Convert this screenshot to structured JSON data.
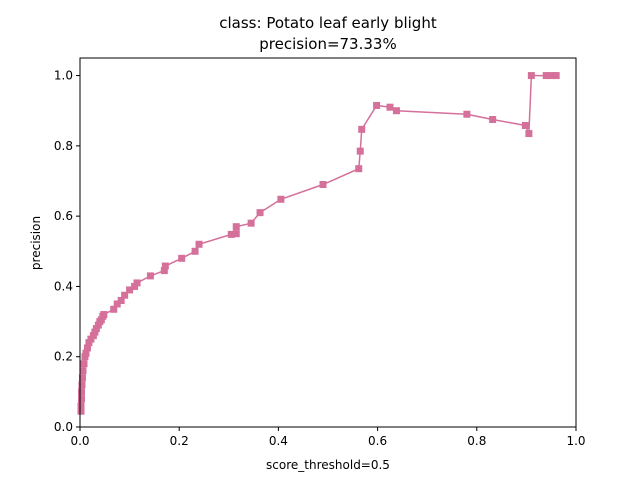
{
  "chart_data": {
    "type": "line",
    "title": "class: Potato leaf early blight",
    "subtitle": "precision=73.33%",
    "xlabel": "score_threshold=0.5",
    "ylabel": "precision",
    "xlim": [
      0.0,
      1.0
    ],
    "ylim": [
      0.0,
      1.05
    ],
    "xticks": [
      "0.0",
      "0.2",
      "0.4",
      "0.6",
      "0.8",
      "1.0"
    ],
    "yticks": [
      "0.0",
      "0.2",
      "0.4",
      "0.6",
      "0.8",
      "1.0"
    ],
    "grid": false,
    "legend": "none",
    "marker": "square",
    "color": "#d4709a",
    "series": [
      {
        "points": [
          [
            0.002,
            0.045
          ],
          [
            0.002,
            0.06
          ],
          [
            0.003,
            0.08
          ],
          [
            0.003,
            0.1
          ],
          [
            0.004,
            0.12
          ],
          [
            0.005,
            0.14
          ],
          [
            0.006,
            0.16
          ],
          [
            0.008,
            0.18
          ],
          [
            0.01,
            0.2
          ],
          [
            0.012,
            0.21
          ],
          [
            0.015,
            0.225
          ],
          [
            0.018,
            0.24
          ],
          [
            0.022,
            0.25
          ],
          [
            0.027,
            0.26
          ],
          [
            0.03,
            0.27
          ],
          [
            0.033,
            0.28
          ],
          [
            0.037,
            0.29
          ],
          [
            0.04,
            0.3
          ],
          [
            0.043,
            0.305
          ],
          [
            0.046,
            0.315
          ],
          [
            0.048,
            0.32
          ],
          [
            0.068,
            0.335
          ],
          [
            0.075,
            0.35
          ],
          [
            0.083,
            0.36
          ],
          [
            0.09,
            0.375
          ],
          [
            0.1,
            0.39
          ],
          [
            0.11,
            0.4
          ],
          [
            0.115,
            0.41
          ],
          [
            0.142,
            0.43
          ],
          [
            0.17,
            0.445
          ],
          [
            0.172,
            0.458
          ],
          [
            0.205,
            0.48
          ],
          [
            0.232,
            0.5
          ],
          [
            0.24,
            0.52
          ],
          [
            0.305,
            0.548
          ],
          [
            0.315,
            0.55
          ],
          [
            0.315,
            0.57
          ],
          [
            0.345,
            0.58
          ],
          [
            0.363,
            0.61
          ],
          [
            0.405,
            0.648
          ],
          [
            0.49,
            0.69
          ],
          [
            0.562,
            0.735
          ],
          [
            0.565,
            0.785
          ],
          [
            0.568,
            0.847
          ],
          [
            0.598,
            0.915
          ],
          [
            0.625,
            0.91
          ],
          [
            0.638,
            0.9
          ],
          [
            0.78,
            0.89
          ],
          [
            0.832,
            0.875
          ],
          [
            0.898,
            0.858
          ],
          [
            0.905,
            0.835
          ],
          [
            0.91,
            1.0
          ],
          [
            0.94,
            1.0
          ],
          [
            0.95,
            1.0
          ],
          [
            0.96,
            1.0
          ]
        ]
      }
    ]
  }
}
